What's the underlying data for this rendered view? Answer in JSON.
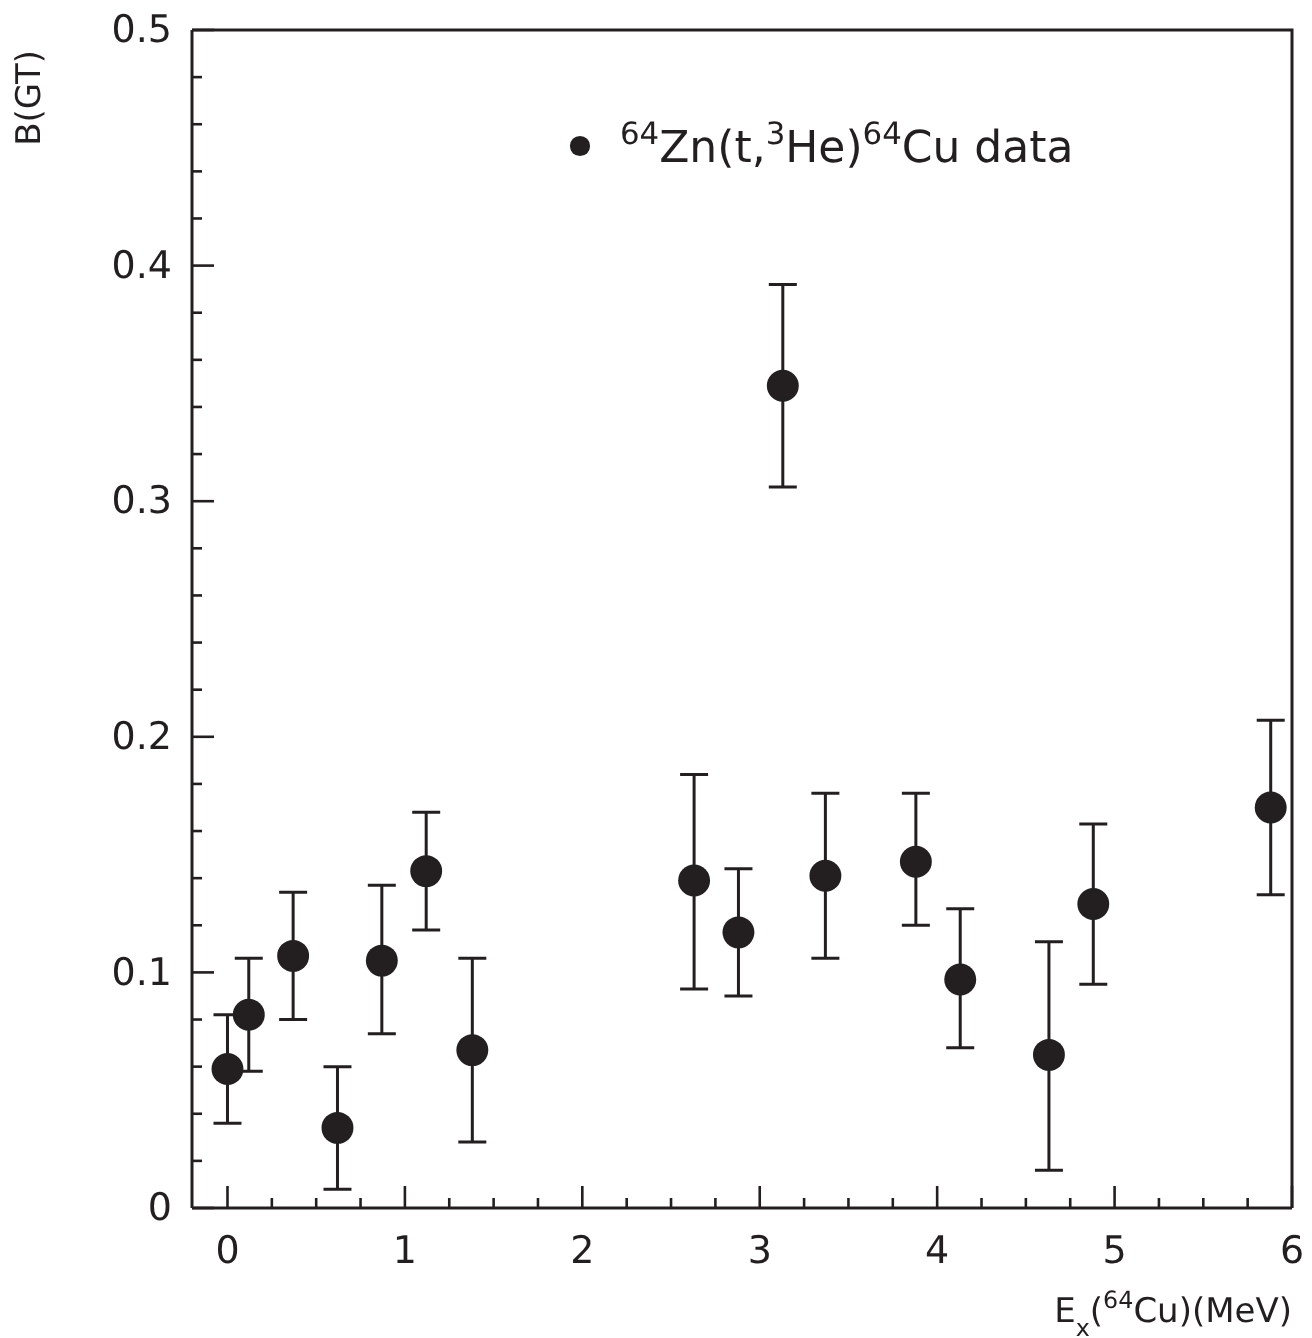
{
  "chart_data": {
    "type": "scatter",
    "xlabel": "E$_{x}$($^{64}$Cu)(MeV)",
    "ylabel": "B(GT)",
    "legend": "top right",
    "marker": "circle",
    "grid": false,
    "xlim": [
      -0.2,
      6
    ],
    "xticks": [
      0,
      {
        "value": 0.25,
        "label": null
      },
      {
        "value": 0.5,
        "label": null
      },
      {
        "value": 0.75,
        "label": null
      },
      1,
      {
        "value": 1.25,
        "label": null
      },
      {
        "value": 1.5,
        "label": null
      },
      {
        "value": 1.75,
        "label": null
      },
      2,
      {
        "value": 2.25,
        "label": null
      },
      {
        "value": 2.5,
        "label": null
      },
      {
        "value": 2.75,
        "label": null
      },
      3,
      {
        "value": 3.25,
        "label": null
      },
      {
        "value": 3.5,
        "label": null
      },
      {
        "value": 3.75,
        "label": null
      },
      4,
      {
        "value": 4.25,
        "label": null
      },
      {
        "value": 4.5,
        "label": null
      },
      {
        "value": 4.75,
        "label": null
      },
      5,
      {
        "value": 5.25,
        "label": null
      },
      {
        "value": 5.5,
        "label": null
      },
      {
        "value": 5.75,
        "label": null
      },
      6
    ],
    "ylim": [
      0,
      0.5
    ],
    "yticks": [
      0,
      {
        "value": 0.02,
        "label": null
      },
      {
        "value": 0.04,
        "label": null
      },
      {
        "value": 0.06,
        "label": null
      },
      {
        "value": 0.08,
        "label": null
      },
      0.1,
      {
        "value": 0.12,
        "label": null
      },
      {
        "value": 0.14,
        "label": null
      },
      {
        "value": 0.16,
        "label": null
      },
      {
        "value": 0.18,
        "label": null
      },
      0.2,
      {
        "value": 0.22,
        "label": null
      },
      {
        "value": 0.24,
        "label": null
      },
      {
        "value": 0.26,
        "label": null
      },
      {
        "value": 0.28,
        "label": null
      },
      0.3,
      {
        "value": 0.32,
        "label": null
      },
      {
        "value": 0.34,
        "label": null
      },
      {
        "value": 0.36,
        "label": null
      },
      {
        "value": 0.38,
        "label": null
      },
      0.4,
      {
        "value": 0.42,
        "label": null
      },
      {
        "value": 0.44,
        "label": null
      },
      {
        "value": 0.46,
        "label": null
      },
      {
        "value": 0.48,
        "label": null
      },
      0.5
    ],
    "series": [
      {
        "name": "$^{64}$Zn(t,$^{3}$He)$^{64}$Cu data",
        "color": "#231f20",
        "x": [
          0,
          0.12,
          0.37,
          0.62,
          0.87,
          1.12,
          1.38,
          2.63,
          2.88,
          3.13,
          3.37,
          3.88,
          4.13,
          4.63,
          4.88,
          5.88
        ],
        "values": [
          0.059,
          0.082,
          0.107,
          0.034,
          0.105,
          0.143,
          0.067,
          0.139,
          0.117,
          0.349,
          0.141,
          0.147,
          0.097,
          0.065,
          0.129,
          0.17
        ],
        "errors": [
          [
            0.036,
            0.082
          ],
          [
            0.058,
            0.106
          ],
          [
            0.08,
            0.134
          ],
          [
            0.008,
            0.06
          ],
          [
            0.074,
            0.137
          ],
          [
            0.118,
            0.168
          ],
          [
            0.028,
            0.106
          ],
          [
            0.093,
            0.184
          ],
          [
            0.09,
            0.144
          ],
          [
            0.306,
            0.392
          ],
          [
            0.106,
            0.176
          ],
          [
            0.12,
            0.176
          ],
          [
            0.068,
            0.127
          ],
          [
            0.016,
            0.113
          ],
          [
            0.095,
            0.163
          ],
          [
            0.133,
            0.207
          ]
        ]
      }
    ]
  }
}
